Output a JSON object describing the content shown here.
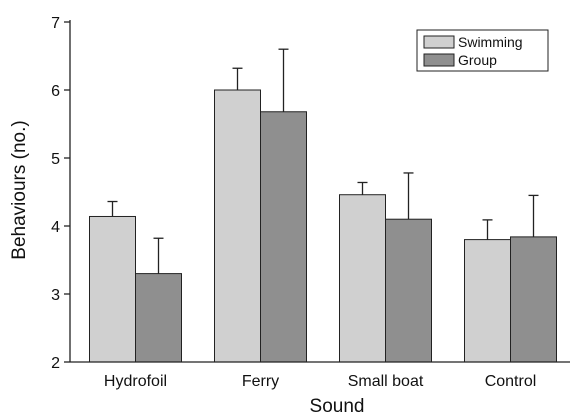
{
  "chart_data": {
    "type": "bar",
    "title": "",
    "xlabel": "Sound",
    "ylabel": "Behaviours (no.)",
    "ylim": [
      2,
      7
    ],
    "yticks": [
      2,
      3,
      4,
      5,
      6,
      7
    ],
    "categories": [
      "Hydrofoil",
      "Ferry",
      "Small boat",
      "Control"
    ],
    "series": [
      {
        "name": "Swimming",
        "color": "#d0d0d0",
        "values": [
          4.14,
          6.0,
          4.46,
          3.8
        ],
        "errors": [
          0.22,
          0.32,
          0.18,
          0.29
        ]
      },
      {
        "name": "Group",
        "color": "#8f8f8f",
        "values": [
          3.3,
          5.68,
          4.1,
          3.84
        ],
        "errors": [
          0.52,
          0.92,
          0.68,
          0.61
        ]
      }
    ],
    "legend_position": "top-right",
    "grid": false,
    "error_bars": true
  }
}
